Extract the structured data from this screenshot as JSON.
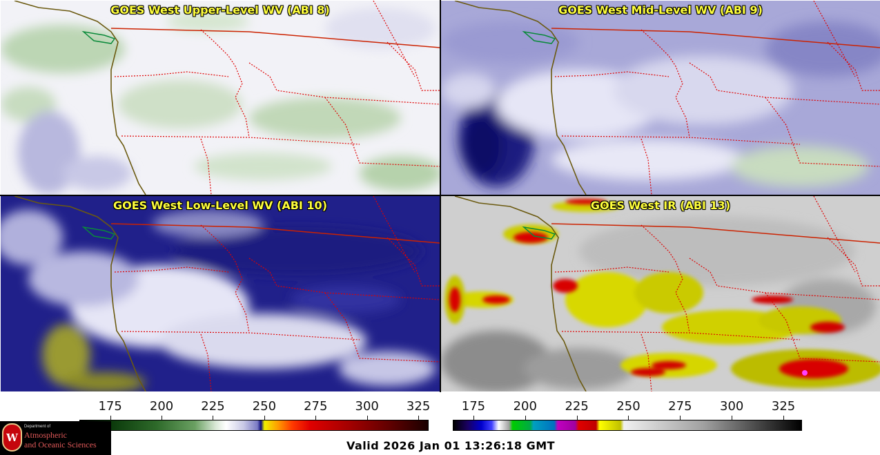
{
  "panels": {
    "upper": {
      "title": "GOES West Upper-Level WV (ABI 8)"
    },
    "mid": {
      "title": "GOES West Mid-Level WV (ABI 9)"
    },
    "low": {
      "title": "GOES West Low-Level WV (ABI 10)"
    },
    "ir": {
      "title": "GOES West IR (ABI 13)"
    }
  },
  "colorbar_wv": {
    "ticks": [
      "175",
      "200",
      "225",
      "250",
      "275",
      "300",
      "325"
    ],
    "min": 160,
    "max": 330
  },
  "colorbar_ir": {
    "ticks": [
      "175",
      "200",
      "225",
      "250",
      "275",
      "300",
      "325"
    ],
    "min": 165,
    "max": 334
  },
  "logo": {
    "line1": "Department of",
    "line2": "Atmospheric",
    "line3": "and Oceanic Sciences",
    "letter": "W"
  },
  "valid_time": "Valid 2026 Jan 01 13:26:18 GMT",
  "colors": {
    "title_text": "#ffff3c",
    "coastline": "#6b5a10",
    "border": "#cc2200",
    "state_lines": "#e00000"
  }
}
